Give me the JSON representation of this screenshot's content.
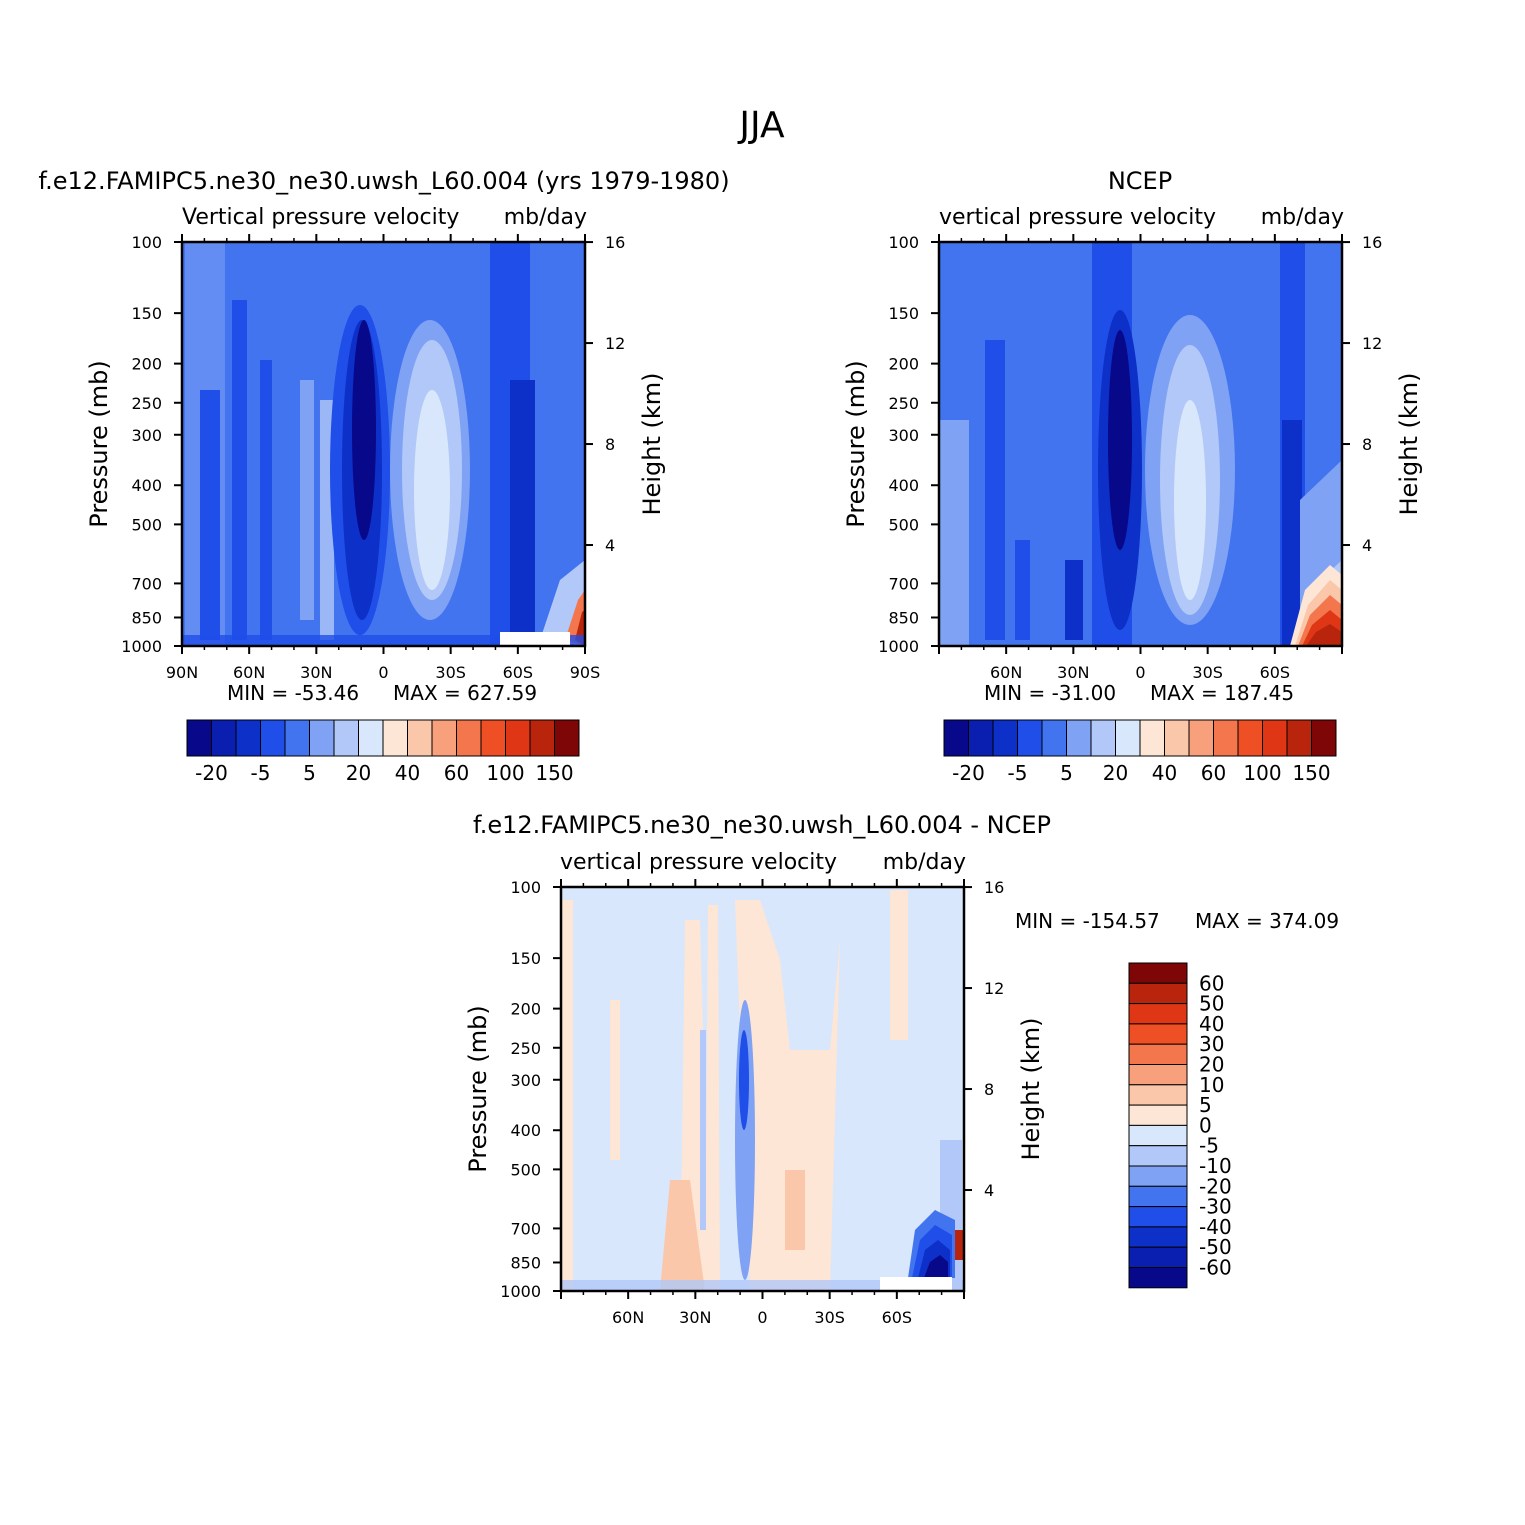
{
  "figure_title": "JJA",
  "colors": {
    "neg_dark": "#08088a",
    "neg1": "#0a1fb0",
    "neg2": "#0d30c8",
    "neg3": "#1f4ee8",
    "neg4": "#4274f0",
    "neg5": "#7fa2f5",
    "neg6": "#b1c8f8",
    "neg7": "#d8e7fb",
    "pos1": "#fde6d6",
    "pos2": "#fbc7ab",
    "pos3": "#f8a07c",
    "pos4": "#f4764d",
    "pos5": "#ee4f25",
    "pos6": "#df3716",
    "pos7": "#b8240c",
    "pos_dark": "#7f0606"
  },
  "panels": [
    {
      "id": "model",
      "title": "f.e12.FAMIPC5.ne30_ne30.uwsh_L60.004 (yrs 1979-1980)",
      "left_label": "Vertical pressure velocity",
      "right_label": "mb/day",
      "ylabel": "Pressure (mb)",
      "ylabel_right": "Height (km)",
      "min_label": "MIN = -53.46",
      "max_label": "MAX = 627.59"
    },
    {
      "id": "obs",
      "title": "NCEP",
      "left_label": "vertical pressure velocity",
      "right_label": "mb/day",
      "ylabel": "Pressure (mb)",
      "ylabel_right": "Height (km)",
      "min_label": "MIN = -31.00",
      "max_label": "MAX = 187.45"
    },
    {
      "id": "diff",
      "title": "f.e12.FAMIPC5.ne30_ne30.uwsh_L60.004 - NCEP",
      "left_label": "vertical pressure velocity",
      "right_label": "mb/day",
      "ylabel": "Pressure (mb)",
      "ylabel_right": "Height (km)",
      "min_label": "MIN = -154.57",
      "max_label": "MAX = 374.09"
    }
  ],
  "pressure_ticks": [
    "100",
    "150",
    "200",
    "250",
    "300",
    "400",
    "500",
    "700",
    "850",
    "1000"
  ],
  "height_ticks": [
    "16",
    "12",
    "8",
    "4"
  ],
  "lat_ticks_full": [
    "90N",
    "60N",
    "30N",
    "0",
    "30S",
    "60S",
    "90S"
  ],
  "lat_ticks_inner": [
    "60N",
    "30N",
    "0",
    "30S",
    "60S"
  ],
  "colorbar_labels": [
    "-20",
    "-5",
    "5",
    "20",
    "40",
    "60",
    "100",
    "150"
  ],
  "diff_colorbar_labels": [
    "60",
    "50",
    "40",
    "30",
    "20",
    "10",
    "5",
    "0",
    "-5",
    "-10",
    "-20",
    "-30",
    "-40",
    "-50",
    "-60"
  ],
  "chart_data": [
    {
      "type": "heatmap",
      "title": "f.e12.FAMIPC5.ne30_ne30.uwsh_L60.004 (yrs 1979-1980)",
      "xlabel": "",
      "ylabel": "Pressure (mb)",
      "y2label": "Height (km)",
      "x_categories": [
        "90N",
        "60N",
        "30N",
        "0",
        "30S",
        "60S",
        "90S"
      ],
      "y_categories": [
        100,
        150,
        200,
        250,
        300,
        400,
        500,
        700,
        850,
        1000
      ],
      "ylim": [
        100,
        1000
      ],
      "y_scale": "log",
      "min": -53.46,
      "max": 627.59,
      "units": "mb/day",
      "contour_levels": [
        -20,
        -5,
        5,
        20,
        40,
        60,
        100,
        150
      ],
      "features": [
        {
          "region": "10N upper to lower troposphere",
          "sign": "negative",
          "approx": -50
        },
        {
          "region": "15S-30S",
          "sign": "positive",
          "approx": 25
        },
        {
          "region": "near 90S below 600 mb",
          "sign": "positive",
          "approx": 150
        }
      ]
    },
    {
      "type": "heatmap",
      "title": "NCEP",
      "ylabel": "Pressure (mb)",
      "y2label": "Height (km)",
      "x_categories": [
        "60N",
        "30N",
        "0",
        "30S",
        "60S"
      ],
      "y_categories": [
        100,
        150,
        200,
        250,
        300,
        400,
        500,
        700,
        850,
        1000
      ],
      "ylim": [
        100,
        1000
      ],
      "y_scale": "log",
      "min": -31.0,
      "max": 187.45,
      "units": "mb/day",
      "contour_levels": [
        -20,
        -5,
        5,
        20,
        40,
        60,
        100,
        150
      ],
      "features": [
        {
          "region": "10N",
          "sign": "negative",
          "approx": -30
        },
        {
          "region": "15S-30S",
          "sign": "positive",
          "approx": 25
        },
        {
          "region": "70S-90S below 600 mb",
          "sign": "positive",
          "approx": 150
        }
      ]
    },
    {
      "type": "heatmap",
      "title": "f.e12.FAMIPC5.ne30_ne30.uwsh_L60.004 - NCEP",
      "ylabel": "Pressure (mb)",
      "y2label": "Height (km)",
      "x_categories": [
        "60N",
        "30N",
        "0",
        "30S",
        "60S"
      ],
      "y_categories": [
        100,
        150,
        200,
        250,
        300,
        400,
        500,
        700,
        850,
        1000
      ],
      "ylim": [
        100,
        1000
      ],
      "y_scale": "log",
      "min": -154.57,
      "max": 374.09,
      "units": "mb/day",
      "contour_levels": [
        -60,
        -50,
        -40,
        -30,
        -20,
        -10,
        -5,
        0,
        5,
        10,
        20,
        30,
        40,
        50,
        60
      ],
      "features": [
        {
          "region": "most of domain",
          "sign": "near zero",
          "approx": -3
        },
        {
          "region": "30N lower troposphere",
          "sign": "positive",
          "approx": 10
        },
        {
          "region": "75S-90S below 600 mb",
          "sign": "negative",
          "approx": -60
        }
      ]
    }
  ]
}
